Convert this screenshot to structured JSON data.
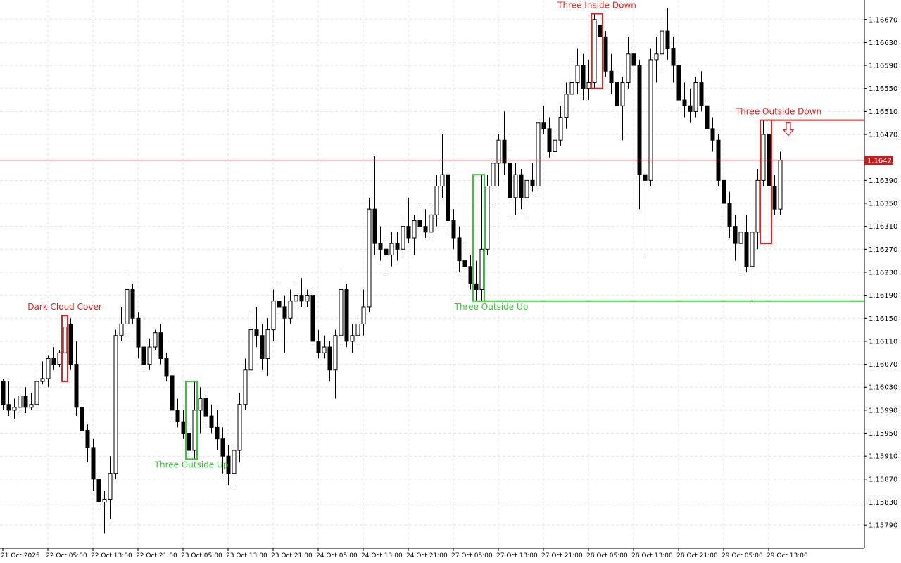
{
  "chart_data": {
    "type": "candlestick",
    "categories": [
      "21 Oct 2025",
      null,
      null,
      null,
      null,
      null,
      null,
      null,
      "22 Oct 05:00",
      null,
      null,
      null,
      null,
      null,
      null,
      null,
      "22 Oct 13:00",
      null,
      null,
      null,
      null,
      null,
      null,
      null,
      "22 Oct 21:00",
      null,
      null,
      null,
      null,
      null,
      null,
      null,
      "23 Oct 05:00",
      null,
      null,
      null,
      null,
      null,
      null,
      null,
      "23 Oct 13:00",
      null,
      null,
      null,
      null,
      null,
      null,
      null,
      "23 Oct 21:00",
      null,
      null,
      null,
      null,
      null,
      null,
      null,
      "24 Oct 05:00",
      null,
      null,
      null,
      null,
      null,
      null,
      null,
      "24 Oct 13:00",
      null,
      null,
      null,
      null,
      null,
      null,
      null,
      "24 Oct 21:00",
      null,
      null,
      null,
      null,
      null,
      null,
      null,
      "27 Oct 05:00",
      null,
      null,
      null,
      null,
      null,
      null,
      null,
      "27 Oct 13:00",
      null,
      null,
      null,
      null,
      null,
      null,
      null,
      "27 Oct 21:00",
      null,
      null,
      null,
      null,
      null,
      null,
      null,
      "28 Oct 05:00",
      null,
      null,
      null,
      null,
      null,
      null,
      null,
      "28 Oct 13:00",
      null,
      null,
      null,
      null,
      null,
      null,
      null,
      "28 Oct 21:00",
      null,
      null,
      null,
      null,
      null,
      null,
      null,
      "29 Oct 05:00",
      null,
      null,
      null,
      null,
      null,
      null,
      null,
      "29 Oct 13:00",
      null,
      null
    ],
    "open": [
      1.1604,
      1.16,
      1.1599,
      1.15995,
      1.16015,
      1.15995,
      1.16,
      1.1604,
      1.16045,
      1.1608,
      1.1607,
      1.1609,
      1.1614,
      1.1607,
      1.15995,
      1.15955,
      1.15925,
      1.1587,
      1.1583,
      1.15835,
      1.1588,
      1.1612,
      1.1614,
      1.162,
      1.1615,
      1.161,
      1.1607,
      1.161,
      1.16125,
      1.1608,
      1.1605,
      1.1599,
      1.1597,
      1.1595,
      1.1592,
      1.1599,
      1.1601,
      1.1598,
      1.1596,
      1.1594,
      1.1591,
      1.1588,
      1.1592,
      1.16,
      1.1606,
      1.1613,
      1.1612,
      1.1608,
      1.1613,
      1.1618,
      1.1617,
      1.1615,
      1.1618,
      1.1619,
      1.1618,
      1.1619,
      1.1611,
      1.1609,
      1.161,
      1.1606,
      1.1612,
      1.162,
      1.1611,
      1.1612,
      1.1614,
      1.1617,
      1.1634,
      1.1628,
      1.1627,
      1.1626,
      1.1628,
      1.1627,
      1.1631,
      1.1629,
      1.1632,
      1.1631,
      1.163,
      1.1633,
      1.1638,
      1.164,
      1.1632,
      1.1629,
      1.1625,
      1.1624,
      1.1621,
      1.162,
      1.1627,
      1.1638,
      1.1642,
      1.1646,
      1.1642,
      1.1636,
      1.164,
      1.1636,
      1.1639,
      1.1638,
      1.1649,
      1.1648,
      1.1644,
      1.1646,
      1.165,
      1.1654,
      1.1656,
      1.1659,
      1.1655,
      1.1656,
      1.1666,
      1.1664,
      1.1658,
      1.1656,
      1.1652,
      1.1656,
      1.1661,
      1.1659,
      1.164,
      1.1639,
      1.166,
      1.1661,
      1.1665,
      1.1662,
      1.1659,
      1.1653,
      1.1652,
      1.1651,
      1.1656,
      1.1652,
      1.1648,
      1.1646,
      1.1639,
      1.1635,
      1.1631,
      1.1628,
      1.163,
      1.1624,
      1.163,
      1.1639,
      1.1647,
      1.1638,
      1.1634
    ],
    "high": [
      1.16045,
      1.1604,
      1.1601,
      1.16025,
      1.1603,
      1.1602,
      1.16065,
      1.16075,
      1.16085,
      1.161,
      1.16095,
      1.16155,
      1.1615,
      1.1611,
      1.16,
      1.15965,
      1.1594,
      1.1588,
      1.1585,
      1.1591,
      1.1613,
      1.1617,
      1.16225,
      1.1621,
      1.1616,
      1.1615,
      1.16115,
      1.1613,
      1.1614,
      1.1609,
      1.1606,
      1.1601,
      1.1599,
      1.1596,
      1.1604,
      1.1603,
      1.1602,
      1.16,
      1.1599,
      1.1596,
      1.1593,
      1.1593,
      1.1602,
      1.1608,
      1.1616,
      1.1617,
      1.1614,
      1.1615,
      1.162,
      1.1621,
      1.1619,
      1.162,
      1.1621,
      1.1622,
      1.162,
      1.162,
      1.1613,
      1.1612,
      1.1611,
      1.1613,
      1.1624,
      1.1621,
      1.1614,
      1.1615,
      1.162,
      1.1636,
      1.16432,
      1.1631,
      1.1629,
      1.163,
      1.163,
      1.1633,
      1.1636,
      1.1633,
      1.1635,
      1.1634,
      1.1635,
      1.164,
      1.1647,
      1.1641,
      1.1634,
      1.1631,
      1.1628,
      1.1626,
      1.1625,
      1.164,
      1.164,
      1.1646,
      1.1647,
      1.1651,
      1.1644,
      1.1642,
      1.1641,
      1.164,
      1.1642,
      1.165,
      1.1652,
      1.165,
      1.1647,
      1.1652,
      1.1656,
      1.166,
      1.1662,
      1.1661,
      1.166,
      1.1668,
      1.1667,
      1.1665,
      1.1661,
      1.1658,
      1.1657,
      1.1664,
      1.1662,
      1.166,
      1.1641,
      1.1662,
      1.1664,
      1.1667,
      1.1669,
      1.1664,
      1.166,
      1.1656,
      1.1655,
      1.1657,
      1.1658,
      1.1653,
      1.165,
      1.1647,
      1.164,
      1.1637,
      1.1633,
      1.1632,
      1.1633,
      1.1631,
      1.1641,
      1.16495,
      1.1649,
      1.164,
      1.1644
    ],
    "low": [
      1.1599,
      1.1598,
      1.15975,
      1.15985,
      1.15985,
      1.1599,
      1.15995,
      1.16035,
      1.1603,
      1.1606,
      1.16065,
      1.1604,
      1.1606,
      1.1598,
      1.1594,
      1.159,
      1.1585,
      1.1582,
      1.15775,
      1.158,
      1.1587,
      1.1611,
      1.1612,
      1.1614,
      1.1608,
      1.1606,
      1.1606,
      1.16095,
      1.1607,
      1.1604,
      1.1597,
      1.1596,
      1.1594,
      1.1591,
      1.15905,
      1.1595,
      1.1596,
      1.1595,
      1.1592,
      1.1588,
      1.1586,
      1.1586,
      1.159,
      1.1599,
      1.1605,
      1.161,
      1.1606,
      1.1605,
      1.1611,
      1.1616,
      1.1609,
      1.1614,
      1.1617,
      1.1617,
      1.1617,
      1.161,
      1.1608,
      1.1608,
      1.1604,
      1.1601,
      1.161,
      1.161,
      1.1609,
      1.161,
      1.1612,
      1.1616,
      1.1626,
      1.1625,
      1.1623,
      1.1624,
      1.1625,
      1.1626,
      1.1628,
      1.1626,
      1.163,
      1.1629,
      1.1629,
      1.1631,
      1.1636,
      1.163,
      1.1627,
      1.1623,
      1.1622,
      1.162,
      1.1618,
      1.1618,
      1.1626,
      1.1635,
      1.1638,
      1.164,
      1.1633,
      1.1633,
      1.1634,
      1.1633,
      1.1637,
      1.1637,
      1.1647,
      1.1643,
      1.1643,
      1.1645,
      1.1648,
      1.1651,
      1.1654,
      1.1653,
      1.1653,
      1.1655,
      1.1662,
      1.1657,
      1.1654,
      1.165,
      1.1646,
      1.1655,
      1.1658,
      1.1634,
      1.1626,
      1.1638,
      1.1656,
      1.1658,
      1.166,
      1.1656,
      1.1651,
      1.165,
      1.1649,
      1.165,
      1.1651,
      1.1647,
      1.1644,
      1.1638,
      1.1633,
      1.1629,
      1.1625,
      1.1623,
      1.1623,
      1.16176,
      1.1627,
      1.1638,
      1.1628,
      1.1633,
      1.1633
    ],
    "close": [
      1.16,
      1.1599,
      1.15995,
      1.16015,
      1.15995,
      1.16,
      1.1604,
      1.16045,
      1.1608,
      1.1607,
      1.1609,
      1.16135,
      1.1607,
      1.15995,
      1.15955,
      1.15925,
      1.1587,
      1.1583,
      1.15835,
      1.1588,
      1.1612,
      1.1614,
      1.162,
      1.1615,
      1.161,
      1.1607,
      1.161,
      1.16125,
      1.1608,
      1.1605,
      1.1599,
      1.1597,
      1.1595,
      1.1592,
      1.1599,
      1.1601,
      1.1598,
      1.1596,
      1.1594,
      1.1591,
      1.1588,
      1.1592,
      1.16,
      1.1606,
      1.1613,
      1.1612,
      1.1608,
      1.1613,
      1.1618,
      1.1617,
      1.1615,
      1.1618,
      1.1619,
      1.1618,
      1.1619,
      1.1611,
      1.1609,
      1.161,
      1.1606,
      1.1612,
      1.162,
      1.1611,
      1.1612,
      1.1614,
      1.1617,
      1.1634,
      1.1628,
      1.1627,
      1.1626,
      1.1628,
      1.1627,
      1.1631,
      1.1629,
      1.1632,
      1.1631,
      1.163,
      1.1633,
      1.1638,
      1.164,
      1.1632,
      1.1629,
      1.1625,
      1.1624,
      1.1621,
      1.162,
      1.1627,
      1.1638,
      1.1642,
      1.1646,
      1.1642,
      1.1636,
      1.164,
      1.1636,
      1.1639,
      1.1638,
      1.1649,
      1.1648,
      1.1644,
      1.1646,
      1.165,
      1.1654,
      1.1656,
      1.1659,
      1.1655,
      1.1656,
      1.1667,
      1.1664,
      1.1658,
      1.1656,
      1.1652,
      1.1656,
      1.1661,
      1.1659,
      1.164,
      1.1639,
      1.166,
      1.1661,
      1.1665,
      1.1662,
      1.1659,
      1.1653,
      1.1652,
      1.1651,
      1.1656,
      1.1652,
      1.1648,
      1.1646,
      1.1639,
      1.1635,
      1.1631,
      1.1628,
      1.163,
      1.1624,
      1.163,
      1.1639,
      1.1647,
      1.1638,
      1.1634,
      1.16425
    ],
    "up_color": "#ffffff",
    "down_color": "#000000",
    "ylim": [
      1.15751,
      1.16704
    ],
    "yticks": [
      {
        "value": 1.1667,
        "label": "1.16670"
      },
      {
        "value": 1.1663,
        "label": "1.16630"
      },
      {
        "value": 1.1659,
        "label": "1.16590"
      },
      {
        "value": 1.1655,
        "label": "1.16550"
      },
      {
        "value": 1.1651,
        "label": "1.16510"
      },
      {
        "value": 1.1647,
        "label": "1.16470"
      },
      {
        "value": 1.1639,
        "label": "1.16390"
      },
      {
        "value": 1.1635,
        "label": "1.16350"
      },
      {
        "value": 1.1631,
        "label": "1.16310"
      },
      {
        "value": 1.1627,
        "label": "1.16270"
      },
      {
        "value": 1.1623,
        "label": "1.16230"
      },
      {
        "value": 1.1619,
        "label": "1.16190"
      },
      {
        "value": 1.1615,
        "label": "1.16150"
      },
      {
        "value": 1.1611,
        "label": "1.16110"
      },
      {
        "value": 1.1607,
        "label": "1.16070"
      },
      {
        "value": 1.1603,
        "label": "1.16030"
      },
      {
        "value": 1.1599,
        "label": "1.15990"
      },
      {
        "value": 1.1595,
        "label": "1.15950"
      },
      {
        "value": 1.1591,
        "label": "1.15910"
      },
      {
        "value": 1.1587,
        "label": "1.15870"
      },
      {
        "value": 1.1583,
        "label": "1.15830"
      },
      {
        "value": 1.1579,
        "label": "1.15790"
      }
    ],
    "grid": true,
    "last_price": 1.16425,
    "last_price_color": "#c81e1e",
    "patterns": [
      {
        "text": "Dark Cloud Cover",
        "color": "#e8211e",
        "from": 11,
        "to": 11,
        "label_position": "top"
      },
      {
        "text": "Three Outside Up",
        "color": "#33cc33",
        "from": 33,
        "to": 34,
        "label_position": "bottom"
      },
      {
        "text": "Three Outside Up",
        "color": "#33cc33",
        "from": 84,
        "to": 85,
        "label_position": "bottom",
        "line": "low"
      },
      {
        "text": "Three Inside Down",
        "color": "#e8211e",
        "from": 105,
        "to": 106,
        "label_position": "top"
      },
      {
        "text": "Three Outside Down",
        "color": "#e8211e",
        "from": 135,
        "to": 136,
        "label_position": "top",
        "line": "high",
        "arrow": "down"
      }
    ]
  }
}
